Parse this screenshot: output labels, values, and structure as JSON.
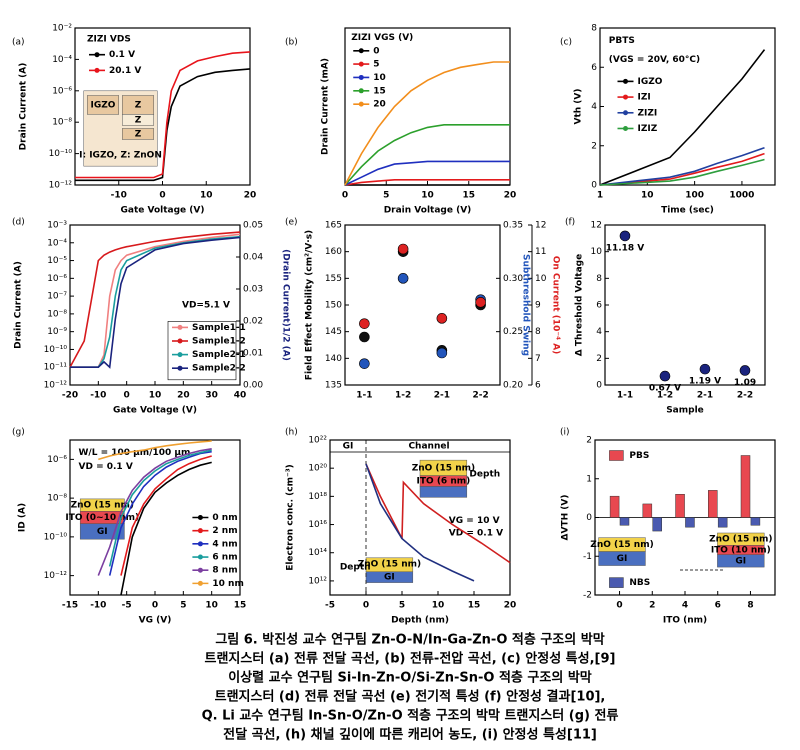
{
  "chart_data": [
    {
      "type": "line",
      "label": "(a)",
      "legend_title": "ZIZI VDS",
      "xlabel": "Gate Voltage (V)",
      "ylabel": "Drain Current (A)",
      "ylog": true,
      "xlim": [
        -20,
        20
      ],
      "xticks": [
        -10,
        0,
        10,
        20
      ],
      "ylim": [
        1e-12,
        0.01
      ],
      "yticks": [
        {
          "value": 1e-12,
          "label": "10⁻¹²"
        },
        {
          "value": 1e-10,
          "label": "10⁻¹⁰"
        },
        {
          "value": 1e-08,
          "label": "10⁻⁸"
        },
        {
          "value": 1e-06,
          "label": "10⁻⁶"
        },
        {
          "value": 0.0001,
          "label": "10⁻⁴"
        },
        {
          "value": 0.01,
          "label": "10⁻²"
        }
      ],
      "x": [
        -20,
        -15,
        -10,
        -5,
        -2,
        0,
        1,
        2,
        4,
        8,
        12,
        16,
        20
      ],
      "series": [
        {
          "name": "0.1 V",
          "color": "#000000",
          "values": [
            2e-12,
            2e-12,
            2e-12,
            2e-12,
            2e-12,
            3e-12,
            3e-09,
            1e-07,
            2e-06,
            8e-06,
            1.5e-05,
            2e-05,
            2.5e-05
          ]
        },
        {
          "name": "20.1 V",
          "color": "#e8141b",
          "values": [
            3e-12,
            3e-12,
            3e-12,
            3e-12,
            3e-12,
            5e-12,
            1e-08,
            1e-06,
            2e-05,
            8e-05,
            0.00015,
            0.00025,
            0.0003
          ]
        }
      ],
      "annotations": [
        "IGZO",
        "Z",
        "Z",
        "Z",
        "I: IGZO, Z: ZnON"
      ]
    },
    {
      "type": "line",
      "label": "(b)",
      "legend_title": "ZIZI VGS (V)",
      "xlabel": "Drain Voltage (V)",
      "ylabel": "Drain Current (mA)",
      "xlim": [
        0,
        20
      ],
      "xticks": [
        0,
        5,
        10,
        15,
        20
      ],
      "ylim": [
        0,
        0.6
      ],
      "x": [
        0,
        2,
        4,
        6,
        8,
        10,
        12,
        14,
        16,
        18,
        20
      ],
      "series": [
        {
          "name": "0",
          "color": "#000000",
          "values": [
            0,
            0,
            0,
            0,
            0,
            0,
            0,
            0,
            0,
            0,
            0
          ]
        },
        {
          "name": "5",
          "color": "#e31a1c",
          "values": [
            0,
            0.01,
            0.015,
            0.02,
            0.02,
            0.02,
            0.02,
            0.02,
            0.02,
            0.02,
            0.02
          ]
        },
        {
          "name": "10",
          "color": "#1f2fbf",
          "values": [
            0,
            0.03,
            0.06,
            0.08,
            0.085,
            0.09,
            0.09,
            0.09,
            0.09,
            0.09,
            0.09
          ]
        },
        {
          "name": "15",
          "color": "#2ca02c",
          "values": [
            0,
            0.07,
            0.13,
            0.17,
            0.2,
            0.22,
            0.23,
            0.23,
            0.23,
            0.23,
            0.23
          ]
        },
        {
          "name": "20",
          "color": "#f28e1c",
          "values": [
            0,
            0.12,
            0.22,
            0.3,
            0.36,
            0.4,
            0.43,
            0.45,
            0.46,
            0.47,
            0.47
          ]
        }
      ]
    },
    {
      "type": "line",
      "label": "(c)",
      "title": "PBTS",
      "subtitle": "(VGS = 20V, 60°C)",
      "xlabel": "Time (sec)",
      "ylabel": "Vth (V)",
      "xlog": true,
      "xlim": [
        1,
        5000
      ],
      "xticks": [
        1,
        10,
        100,
        1000
      ],
      "ylim": [
        0,
        8
      ],
      "yticks": [
        0,
        2,
        4,
        6,
        8
      ],
      "x": [
        1,
        30,
        100,
        300,
        1000,
        3000
      ],
      "series": [
        {
          "name": "IGZO",
          "color": "#000000",
          "values": [
            0,
            1.4,
            2.7,
            4.0,
            5.4,
            6.9
          ]
        },
        {
          "name": "IZI",
          "color": "#e31a1c",
          "values": [
            0,
            0.3,
            0.6,
            0.9,
            1.2,
            1.6
          ]
        },
        {
          "name": "ZIZI",
          "color": "#2140a0",
          "values": [
            0,
            0.4,
            0.7,
            1.1,
            1.5,
            1.9
          ]
        },
        {
          "name": "IZIZ",
          "color": "#2e9e3e",
          "values": [
            0,
            0.2,
            0.4,
            0.7,
            1.0,
            1.3
          ]
        }
      ]
    },
    {
      "type": "line",
      "label": "(d)",
      "xlabel": "Gate Voltage (V)",
      "ylabel": "Drain Current (A)",
      "y2label": "(Drain Current)1/2 (A)",
      "ylog": true,
      "xlim": [
        -20,
        40
      ],
      "xticks": [
        -20,
        -10,
        0,
        10,
        20,
        30,
        40
      ],
      "ylim": [
        1e-12,
        0.001
      ],
      "yticks": [
        {
          "value": 1e-12,
          "label": "10⁻¹²"
        },
        {
          "value": 1e-11,
          "label": "10⁻¹¹"
        },
        {
          "value": 1e-10,
          "label": "10⁻¹⁰"
        },
        {
          "value": 1e-09,
          "label": "10⁻⁹"
        },
        {
          "value": 1e-08,
          "label": "10⁻⁸"
        },
        {
          "value": 1e-07,
          "label": "10⁻⁷"
        },
        {
          "value": 1e-06,
          "label": "10⁻⁶"
        },
        {
          "value": 1e-05,
          "label": "10⁻⁵"
        },
        {
          "value": 0.0001,
          "label": "10⁻⁴"
        },
        {
          "value": 0.001,
          "label": "10⁻³"
        }
      ],
      "y2lim": [
        0,
        0.05
      ],
      "y2ticks": [
        {
          "value": 0,
          "label": "0.00"
        },
        0.01,
        0.02,
        0.03,
        0.04,
        0.05
      ],
      "x": [
        -20,
        -15,
        -10,
        -8,
        -6,
        -4,
        -2,
        0,
        10,
        20,
        30,
        40
      ],
      "series": [
        {
          "name": "Sample1-1",
          "color": "#f08080",
          "values": [
            1e-11,
            1e-11,
            1e-11,
            5e-11,
            1e-07,
            3e-06,
            1e-05,
            2e-05,
            6e-05,
            0.00012,
            0.0002,
            0.0003
          ]
        },
        {
          "name": "Sample1-2",
          "color": "#d7191c",
          "values": [
            1e-11,
            3e-10,
            1e-05,
            2e-05,
            3e-05,
            4e-05,
            5e-05,
            6e-05,
            0.00012,
            0.0002,
            0.0003,
            0.0004
          ]
        },
        {
          "name": "Sample2-1",
          "color": "#1a9e9e",
          "values": [
            1e-11,
            1e-11,
            1e-11,
            3e-11,
            5e-10,
            1e-07,
            3e-06,
            1e-05,
            5e-05,
            0.0001,
            0.00016,
            0.00022
          ]
        },
        {
          "name": "Sample2-2",
          "color": "#1a237e",
          "values": [
            1e-11,
            1e-11,
            1e-11,
            2e-11,
            1e-11,
            5e-09,
            5e-07,
            4e-06,
            4e-05,
            9e-05,
            0.00014,
            0.0002
          ]
        }
      ],
      "annotations": [
        "VD=5.1 V"
      ]
    },
    {
      "type": "scatter",
      "label": "(e)",
      "ylabel": "Field Effect Mobility (cm²/V·s)",
      "y2label": "Subthreshold Swing",
      "y3label": "On Current (10⁻⁴ A)",
      "categories": [
        "1-1",
        "1-2",
        "2-1",
        "2-2"
      ],
      "ylim": [
        135,
        165
      ],
      "yticks": [
        135,
        140,
        145,
        150,
        155,
        160,
        165
      ],
      "y2lim": [
        0.2,
        0.35
      ],
      "y2ticks": [
        {
          "value": 0.2,
          "label": "0.20"
        },
        0.25,
        {
          "value": 0.3,
          "label": "0.30"
        },
        0.35
      ],
      "y3lim": [
        6,
        12
      ],
      "y3ticks": [
        6,
        7,
        8,
        9,
        10,
        11,
        12
      ],
      "series": [
        {
          "color": "#111111",
          "values": [
            144,
            160,
            141.5,
            150
          ]
        },
        {
          "color": "#2255bb",
          "axis": "y2",
          "values": [
            0.22,
            0.3,
            0.23,
            0.28
          ]
        },
        {
          "color": "#dd2222",
          "axis": "y3",
          "values": [
            8.3,
            11.1,
            8.5,
            9.1
          ]
        }
      ]
    },
    {
      "type": "scatter",
      "label": "(f)",
      "xlabel": "Sample",
      "ylabel": "Δ Threshold Voltage",
      "categories": [
        "1-1",
        "1-2",
        "2-1",
        "2-2"
      ],
      "ylim": [
        0,
        12
      ],
      "yticks": [
        0,
        2,
        4,
        6,
        8,
        10,
        12
      ],
      "series": [
        {
          "color": "#1a237e",
          "values": [
            11.18,
            0.67,
            1.19,
            1.09
          ],
          "value_labels": [
            "11.18 V",
            "0.67 V",
            "1.19 V",
            "1.09"
          ]
        }
      ]
    },
    {
      "type": "line",
      "label": "(g)",
      "xlabel": "VG (V)",
      "ylabel": "ID (A)",
      "ylog": true,
      "xlim": [
        -15,
        15
      ],
      "xticks": [
        -15,
        -10,
        -5,
        0,
        5,
        10,
        15
      ],
      "ylim": [
        1e-13,
        1e-05
      ],
      "yticks": [
        {
          "value": 1e-12,
          "label": "10⁻¹²"
        },
        {
          "value": 1e-10,
          "label": "10⁻¹⁰"
        },
        {
          "value": 1e-08,
          "label": "10⁻⁸"
        },
        {
          "value": 1e-06,
          "label": "10⁻⁶"
        }
      ],
      "x": [
        -10,
        -8,
        -6,
        -4,
        -2,
        0,
        2,
        4,
        6,
        8,
        10
      ],
      "series": [
        {
          "name": "0 nm",
          "color": "#000000",
          "values": [
            null,
            null,
            1e-13,
            1e-10,
            3e-09,
            2e-08,
            6e-08,
            1.5e-07,
            3e-07,
            5e-07,
            7e-07
          ]
        },
        {
          "name": "2 nm",
          "color": "#e31a1c",
          "values": [
            null,
            null,
            1e-12,
            3e-10,
            5e-09,
            3e-08,
            1e-07,
            3e-07,
            6e-07,
            1e-06,
            1.5e-06
          ]
        },
        {
          "name": "4 nm",
          "color": "#1f2fbf",
          "values": [
            null,
            1e-12,
            3e-10,
            5e-09,
            4e-08,
            1.5e-07,
            4e-07,
            8e-07,
            1.3e-06,
            2e-06,
            2.5e-06
          ]
        },
        {
          "name": "6 nm",
          "color": "#1a9e9e",
          "values": [
            null,
            3e-12,
            1e-09,
            1.5e-08,
            8e-08,
            2.5e-07,
            6e-07,
            1e-06,
            1.6e-06,
            2.2e-06,
            3e-06
          ]
        },
        {
          "name": "8 nm",
          "color": "#7b3fa0",
          "values": [
            1e-12,
            3e-11,
            2e-09,
            2.5e-08,
            1.2e-07,
            3.5e-07,
            8e-07,
            1.3e-06,
            2e-06,
            2.8e-06,
            3.5e-06
          ]
        },
        {
          "name": "10 nm",
          "color": "#f0a030",
          "values": [
            1e-06,
            1.5e-06,
            2e-06,
            2.5e-06,
            3e-06,
            4e-06,
            5e-06,
            6e-06,
            7e-06,
            8e-06,
            9e-06
          ]
        }
      ],
      "annotations": [
        "W/L = 100 μm/100 μm",
        "VD = 0.1 V",
        "ZnO (15 nm)",
        "ITO (0~10 nm)",
        "GI"
      ]
    },
    {
      "type": "line",
      "label": "(h)",
      "xlabel": "Depth (nm)",
      "ylabel": "Electron conc. (cm⁻³)",
      "ylog": true,
      "xlim": [
        -5,
        20
      ],
      "xticks": [
        -5,
        0,
        5,
        10,
        15,
        20
      ],
      "ylim": [
        100000000000.0,
        1e+22
      ],
      "yticks": [
        {
          "value": 1000000000000.0,
          "label": "10¹²"
        },
        {
          "value": 100000000000000.0,
          "label": "10¹⁴"
        },
        {
          "value": 1e+16,
          "label": "10¹⁶"
        },
        {
          "value": 1e+18,
          "label": "10¹⁸"
        },
        {
          "value": 1e+20,
          "label": "10²⁰"
        },
        {
          "value": 1e+22,
          "label": "10²²"
        }
      ],
      "series": [
        {
          "color": "#d02020",
          "x": [
            0,
            2,
            4,
            5,
            5.2,
            8,
            12,
            16,
            20
          ],
          "values": [
            2e+20,
            1e+18,
            1e+16,
            1000000000000000.0,
            1e+19,
            3e+17,
            1e+16,
            500000000000000.0,
            20000000000000.0
          ]
        },
        {
          "color": "#203080",
          "x": [
            0,
            2,
            5,
            8,
            12,
            15
          ],
          "values": [
            2e+20,
            3e+17,
            1000000000000000.0,
            50000000000000.0,
            5000000000000.0,
            1000000000000.0
          ]
        }
      ],
      "annotations": [
        "GI",
        "Channel",
        "VG = 10 V",
        "VD = 0.1 V",
        "ZnO (15 nm)",
        "ITO (6 nm)",
        "Depth",
        "ZnO (15 nm)",
        "GI",
        "Depth"
      ]
    },
    {
      "type": "bar",
      "label": "(i)",
      "xlabel": "ITO (nm)",
      "ylabel": "ΔVTH (V)",
      "x": [
        0,
        2,
        4,
        6,
        8
      ],
      "xlim": [
        -1.5,
        9.5
      ],
      "xticks": [
        0,
        2,
        4,
        6,
        8
      ],
      "ylim": [
        -2,
        2
      ],
      "yticks": [
        -2,
        -1,
        0,
        1,
        2
      ],
      "series": [
        {
          "name": "PBS",
          "color": "#e84850",
          "values": [
            0.55,
            0.35,
            0.6,
            0.7,
            1.6
          ]
        },
        {
          "name": "NBS",
          "color": "#4a5ab0",
          "values": [
            -0.2,
            -0.35,
            -0.25,
            -0.25,
            -0.2
          ]
        }
      ],
      "annotations": [
        "ZnO (15 nm)",
        "GI",
        "ZnO (15 nm)",
        "ITO (10 nm)",
        "GI"
      ]
    }
  ],
  "caption": [
    "그림 6. 박진성 교수 연구팀 Zn-O-N/In-Ga-Zn-O 적층 구조의 박막",
    "트랜지스터 (a) 전류 전달 곡선, (b) 전류-전압 곡선, (c) 안정성 특성,[9]",
    "이상렬 교수 연구팀 Si-In-Zn-O/Si-Zn-Sn-O 적층 구조의 박막",
    "트랜지스터 (d) 전류 전달 곡선 (e) 전기적 특성 (f) 안정성 결과[10],",
    "Q. Li 교수 연구팀 In-Sn-O/Zn-O 적층 구조의 박막 트랜지스터 (g) 전류",
    "전달 곡선, (h) 채널 깊이에 따른 캐리어 농도, (i) 안정성 특성[11]"
  ]
}
